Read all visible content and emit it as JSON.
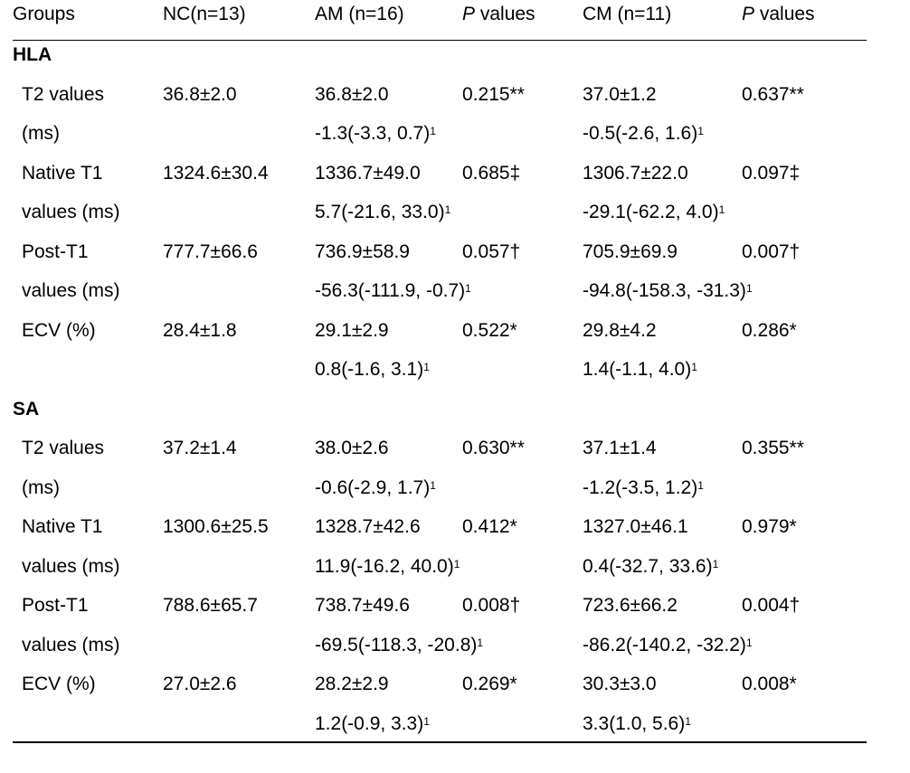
{
  "header": {
    "groups": "Groups",
    "nc": "NC(n=13)",
    "am": "AM (n=16)",
    "p1_italic": "P",
    "p1_rest": " values",
    "cm": "CM (n=11)",
    "p2_italic": "P",
    "p2_rest": " values"
  },
  "hla": {
    "title": "HLA",
    "t2": {
      "label1": "T2 values",
      "label2": "(ms)",
      "nc": "36.8±2.0",
      "am": "36.8±2.0",
      "p_am": "0.215**",
      "cm": "37.0±1.2",
      "p_cm": "0.637**",
      "am_diff": "-1.3(-3.3, 0.7)",
      "cm_diff": "-0.5(-2.6, 1.6)"
    },
    "native": {
      "label1": "Native T1",
      "label2": "values (ms)",
      "nc": "1324.6±30.4",
      "am": "1336.7±49.0",
      "p_am": "0.685‡",
      "cm": "1306.7±22.0",
      "p_cm": "0.097‡",
      "am_diff": "5.7(-21.6, 33.0)",
      "cm_diff": "-29.1(-62.2, 4.0)"
    },
    "post": {
      "label1": "Post-T1",
      "label2": "values (ms)",
      "nc": "777.7±66.6",
      "am": "736.9±58.9",
      "p_am": "0.057†",
      "cm": "705.9±69.9",
      "p_cm": "0.007†",
      "am_diff": "-56.3(-111.9, -0.7)",
      "cm_diff": "-94.8(-158.3, -31.3)"
    },
    "ecv": {
      "label1": "ECV (%)",
      "nc": "28.4±1.8",
      "am": "29.1±2.9",
      "p_am": "0.522*",
      "cm": "29.8±4.2",
      "p_cm": "0.286*",
      "am_diff": "0.8(-1.6, 3.1)",
      "cm_diff": "1.4(-1.1, 4.0)"
    }
  },
  "sa": {
    "title": "SA",
    "t2": {
      "label1": "T2 values",
      "label2": "(ms)",
      "nc": "37.2±1.4",
      "am": "38.0±2.6",
      "p_am": "0.630**",
      "cm": "37.1±1.4",
      "p_cm": "0.355**",
      "am_diff": "-0.6(-2.9, 1.7)",
      "cm_diff": "-1.2(-3.5, 1.2)"
    },
    "native": {
      "label1": "Native T1",
      "label2": "values (ms)",
      "nc": "1300.6±25.5",
      "am": "1328.7±42.6",
      "p_am": "0.412*",
      "cm": "1327.0±46.1",
      "p_cm": "0.979*",
      "am_diff": "11.9(-16.2, 40.0)",
      "cm_diff": "0.4(-32.7, 33.6)"
    },
    "post": {
      "label1": "Post-T1",
      "label2": "values (ms)",
      "nc": "788.6±65.7",
      "am": "738.7±49.6",
      "p_am": "0.008†",
      "cm": "723.6±66.2",
      "p_cm": "0.004†",
      "am_diff": "-69.5(-118.3, -20.8)",
      "cm_diff": "-86.2(-140.2, -32.2)"
    },
    "ecv": {
      "label1": "ECV (%)",
      "nc": "27.0±2.6",
      "am": "28.2±2.9",
      "p_am": "0.269*",
      "cm": "30.3±3.0",
      "p_cm": "0.008*",
      "am_diff": "1.2(-0.9, 3.3)",
      "cm_diff": "3.3(1.0, 5.6)"
    }
  },
  "footnote_mark": "1"
}
